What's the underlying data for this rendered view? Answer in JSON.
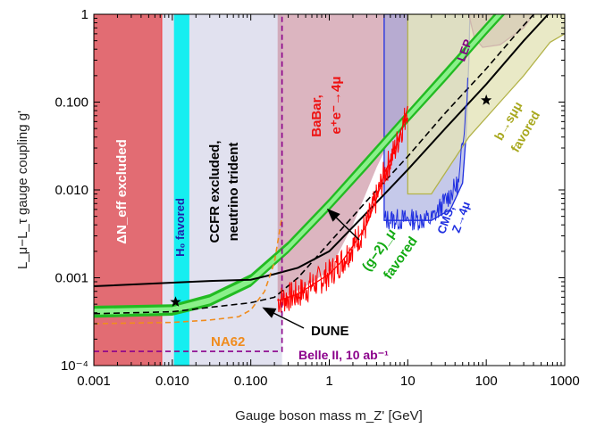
{
  "chart_data": {
    "type": "area",
    "title": "",
    "xlabel": "Gauge boson mass m_Z' [GeV]",
    "ylabel": "L_μ−L_τ gauge coupling g'",
    "x_scale": "log",
    "y_scale": "log",
    "xlim": [
      0.001,
      1000
    ],
    "ylim": [
      0.0001,
      1
    ],
    "grid": false,
    "x_ticks": [
      {
        "value": 0.001,
        "label": "0.001"
      },
      {
        "value": 0.01,
        "label": "0.010"
      },
      {
        "value": 0.1,
        "label": "0.100"
      },
      {
        "value": 1,
        "label": "1"
      },
      {
        "value": 10,
        "label": "10"
      },
      {
        "value": 100,
        "label": "100"
      },
      {
        "value": 1000,
        "label": "1000"
      }
    ],
    "y_ticks": [
      {
        "value": 0.0001,
        "label": "10⁻⁴"
      },
      {
        "value": 0.001,
        "label": "0.001"
      },
      {
        "value": 0.01,
        "label": "0.010"
      },
      {
        "value": 0.1,
        "label": "0.100"
      },
      {
        "value": 1,
        "label": "1"
      }
    ],
    "regions": [
      {
        "key": "neff",
        "label": "ΔN_eff excluded",
        "color": "#e0646c",
        "opacity": 0.95,
        "edge_color": "#ff1a1a",
        "points": [
          [
            0.001,
            0.0001
          ],
          [
            0.0074,
            0.0001
          ],
          [
            0.0074,
            1
          ],
          [
            0.001,
            1
          ]
        ]
      },
      {
        "key": "ccfr",
        "label": "CCFR excluded, neutrino trident",
        "color": "#dcdcec",
        "opacity": 0.85,
        "edge_color": "",
        "points": [
          [
            0.0074,
            0.0001
          ],
          [
            0.25,
            0.0001
          ],
          [
            0.25,
            1
          ],
          [
            0.0074,
            1
          ]
        ]
      },
      {
        "key": "babar",
        "label": "BaBar, e⁺e⁻→4μ",
        "color": "#c98d9e",
        "opacity": 0.65,
        "edge_color": "",
        "points": [
          [
            0.22,
            0.00055
          ],
          [
            0.5,
            0.0008
          ],
          [
            1,
            0.0012
          ],
          [
            2,
            0.004
          ],
          [
            4,
            0.018
          ],
          [
            7,
            0.05
          ],
          [
            10,
            0.09
          ],
          [
            10,
            1
          ],
          [
            0.22,
            1
          ]
        ]
      },
      {
        "key": "cms",
        "label": "CMS, Z→4μ",
        "color": "#9ea5dc",
        "opacity": 0.6,
        "edge_color": "#1f2fe0",
        "points": [
          [
            5,
            0.0045
          ],
          [
            10,
            0.0045
          ],
          [
            20,
            0.0045
          ],
          [
            35,
            0.006
          ],
          [
            50,
            0.012
          ],
          [
            55,
            0.04
          ],
          [
            60,
            0.3
          ],
          [
            62,
            1
          ],
          [
            5,
            1
          ]
        ]
      },
      {
        "key": "lep",
        "label": "LEP",
        "color": "#9a5aa6",
        "opacity": 0.7,
        "edge_color": "#800080",
        "points": [
          [
            60,
            1
          ],
          [
            70,
            0.55
          ],
          [
            90,
            0.42
          ],
          [
            150,
            0.45
          ],
          [
            300,
            0.7
          ],
          [
            400,
            1
          ]
        ]
      },
      {
        "key": "bsmumu",
        "label": "b→sμμ favored",
        "color": "#e4e4b8",
        "opacity": 0.8,
        "edge_color": "#b3b34a",
        "points": [
          [
            10,
            0.009
          ],
          [
            10,
            1
          ],
          [
            1000,
            1
          ],
          [
            1000,
            0.6
          ],
          [
            650,
            0.48
          ],
          [
            300,
            0.2
          ],
          [
            150,
            0.1
          ],
          [
            60,
            0.04
          ],
          [
            20,
            0.009
          ]
        ]
      },
      {
        "key": "h0",
        "label": "H₀ favored",
        "color": "#00f0f0",
        "opacity": 0.9,
        "edge_color": "",
        "points": [
          [
            0.0105,
            0.0001
          ],
          [
            0.0165,
            0.0001
          ],
          [
            0.0165,
            1
          ],
          [
            0.0105,
            1
          ]
        ]
      }
    ],
    "g2_band": {
      "label": "(g−2)_μ favored",
      "color": "#22bb22",
      "inner_color": "#8af08a",
      "x": [
        0.001,
        0.01,
        0.03,
        0.1,
        0.3,
        1,
        3,
        10,
        30,
        100,
        300,
        1000
      ],
      "upper": [
        0.00048,
        0.0005,
        0.00065,
        0.0011,
        0.0026,
        0.008,
        0.024,
        0.08,
        0.24,
        0.8,
        2.4,
        8
      ],
      "center": [
        0.00041,
        0.00043,
        0.00055,
        0.00092,
        0.0022,
        0.0068,
        0.02,
        0.068,
        0.2,
        0.68,
        2.0,
        6.8
      ],
      "lower": [
        0.00035,
        0.00037,
        0.00047,
        0.00079,
        0.0019,
        0.0058,
        0.017,
        0.058,
        0.17,
        0.58,
        1.7,
        5.8
      ]
    },
    "curves": [
      {
        "key": "solid",
        "label": "",
        "color": "#000000",
        "dash": "",
        "width": 2,
        "x": [
          0.001,
          0.01,
          0.03,
          0.1,
          0.2,
          0.4,
          1,
          3,
          10,
          30,
          100,
          300,
          1000
        ],
        "y": [
          0.0008,
          0.00088,
          0.00092,
          0.00095,
          0.0011,
          0.0013,
          0.002,
          0.0055,
          0.017,
          0.05,
          0.16,
          0.5,
          1.6
        ]
      },
      {
        "key": "dune",
        "label": "DUNE",
        "color": "#000000",
        "dash": "7,4",
        "width": 1.6,
        "x": [
          0.001,
          0.01,
          0.03,
          0.1,
          0.2,
          0.4,
          1,
          3,
          10,
          30,
          100,
          300,
          1000
        ],
        "y": [
          0.00039,
          0.00041,
          0.00046,
          0.00052,
          0.0006,
          0.001,
          0.0025,
          0.0075,
          0.024,
          0.075,
          0.24,
          0.75,
          2.4
        ]
      },
      {
        "key": "na62",
        "label": "NA62",
        "color": "#f08c1e",
        "dash": "6,4",
        "width": 1.6,
        "x": [
          0.001,
          0.01,
          0.03,
          0.07,
          0.1,
          0.15,
          0.2,
          0.22,
          0.25
        ],
        "y": [
          0.0003,
          0.00031,
          0.00033,
          0.00036,
          0.00043,
          0.0007,
          0.0015,
          0.0025,
          0.005
        ]
      },
      {
        "key": "belle",
        "label": "Belle II, 10 ab⁻¹",
        "color": "#8b008b",
        "dash": "6,4",
        "width": 1.6,
        "x": [
          0.001,
          0.25,
          0.25
        ],
        "y": [
          0.000145,
          0.000145,
          1
        ]
      },
      {
        "key": "babar_edge",
        "label": "",
        "color": "#ff0000",
        "dash": "",
        "width": 1.2,
        "x": [
          0.22,
          0.4,
          0.7,
          1,
          1.5,
          2,
          3,
          4,
          5,
          6,
          7,
          8,
          9,
          10
        ],
        "y": [
          0.00055,
          0.00065,
          0.0009,
          0.0011,
          0.0016,
          0.0023,
          0.004,
          0.008,
          0.015,
          0.022,
          0.03,
          0.045,
          0.06,
          0.09
        ]
      }
    ],
    "markers": [
      {
        "key": "star-low",
        "x": 0.011,
        "y": 0.00053,
        "symbol": "star"
      },
      {
        "key": "star-high",
        "x": 100,
        "y": 0.105,
        "symbol": "star"
      }
    ],
    "annotations": [
      {
        "key": "neff",
        "text": "ΔN_eff excluded",
        "color": "#ffffff",
        "rotate": -90,
        "size": 15
      },
      {
        "key": "h0",
        "text": "H₀ favored",
        "color": "#2222aa",
        "rotate": -90,
        "size": 13
      },
      {
        "key": "ccfr-1",
        "text": "CCFR excluded,",
        "color": "#000000",
        "rotate": -90,
        "size": 15
      },
      {
        "key": "ccfr-2",
        "text": "neutrino trident",
        "color": "#000000",
        "rotate": -90,
        "size": 15
      },
      {
        "key": "babar-1",
        "text": "BaBar,",
        "color": "#ee1111",
        "rotate": -90,
        "size": 15
      },
      {
        "key": "babar-2",
        "text": "e⁺e⁻→4μ",
        "color": "#ee1111",
        "rotate": -90,
        "size": 15
      },
      {
        "key": "lep",
        "text": "LEP",
        "color": "#800080",
        "rotate": -70,
        "size": 13
      },
      {
        "key": "bsmumu-1",
        "text": "b→sμμ",
        "color": "#a8a81e",
        "rotate": -60,
        "size": 14
      },
      {
        "key": "bsmumu-2",
        "text": "favored",
        "color": "#a8a81e",
        "rotate": -60,
        "size": 14
      },
      {
        "key": "cms-1",
        "text": "CMS,",
        "color": "#1f2fe0",
        "rotate": -70,
        "size": 13
      },
      {
        "key": "cms-2",
        "text": "Z→4μ",
        "color": "#1f2fe0",
        "rotate": -70,
        "size": 13
      },
      {
        "key": "g2-1",
        "text": "(g−2)_μ",
        "color": "#11aa11",
        "rotate": -55,
        "size": 15
      },
      {
        "key": "g2-2",
        "text": "favored",
        "color": "#11aa11",
        "rotate": -55,
        "size": 15
      },
      {
        "key": "dune",
        "text": "DUNE",
        "color": "#000000",
        "rotate": 0,
        "size": 15
      },
      {
        "key": "na62",
        "text": "NA62",
        "color": "#f08c1e",
        "rotate": 0,
        "size": 15
      },
      {
        "key": "belle",
        "text": "Belle II, 10 ab⁻¹",
        "color": "#8b008b",
        "rotate": 0,
        "size": 14
      }
    ]
  }
}
